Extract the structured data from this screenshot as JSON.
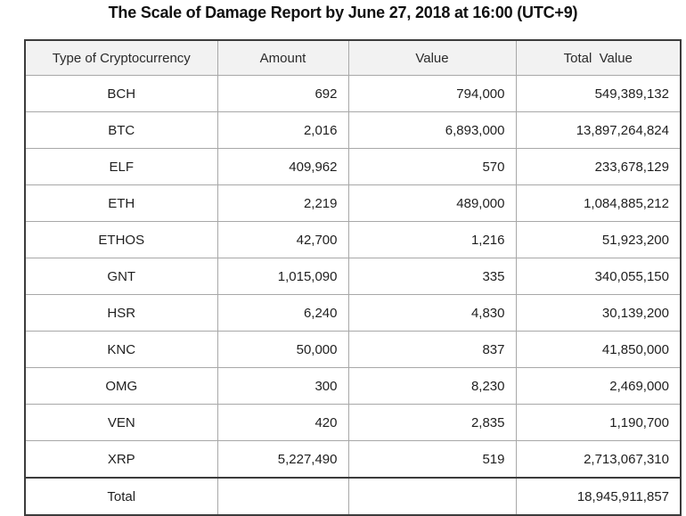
{
  "title": "The Scale of Damage Report by June 27, 2018 at 16:00 (UTC+9)",
  "chart_data": {
    "type": "table",
    "title": "The Scale of Damage Report by June 27, 2018 at 16:00 (UTC+9)",
    "columns": [
      "Type of Cryptocurrency",
      "Amount",
      "Value",
      "Total  Value"
    ],
    "rows": [
      [
        "BCH",
        "692",
        "794,000",
        "549,389,132"
      ],
      [
        "BTC",
        "2,016",
        "6,893,000",
        "13,897,264,824"
      ],
      [
        "ELF",
        "409,962",
        "570",
        "233,678,129"
      ],
      [
        "ETH",
        "2,219",
        "489,000",
        "1,084,885,212"
      ],
      [
        "ETHOS",
        "42,700",
        "1,216",
        "51,923,200"
      ],
      [
        "GNT",
        "1,015,090",
        "335",
        "340,055,150"
      ],
      [
        "HSR",
        "6,240",
        "4,830",
        "30,139,200"
      ],
      [
        "KNC",
        "50,000",
        "837",
        "41,850,000"
      ],
      [
        "OMG",
        "300",
        "8,230",
        "2,469,000"
      ],
      [
        "VEN",
        "420",
        "2,835",
        "1,190,700"
      ],
      [
        "XRP",
        "5,227,490",
        "519",
        "2,713,067,310"
      ]
    ],
    "total_row": [
      "Total",
      "",
      "",
      "18,945,911,857"
    ],
    "layout": {
      "column_alignments": [
        "center",
        "right",
        "right",
        "right"
      ],
      "grid": true,
      "header_background": "#f2f2f2"
    },
    "colors": {
      "outer_border": "#3c3c3c",
      "inner_border": "#a8a8a8",
      "header_bg": "#f2f2f2",
      "text": "#1f1f1f",
      "title_text": "#111111"
    }
  }
}
